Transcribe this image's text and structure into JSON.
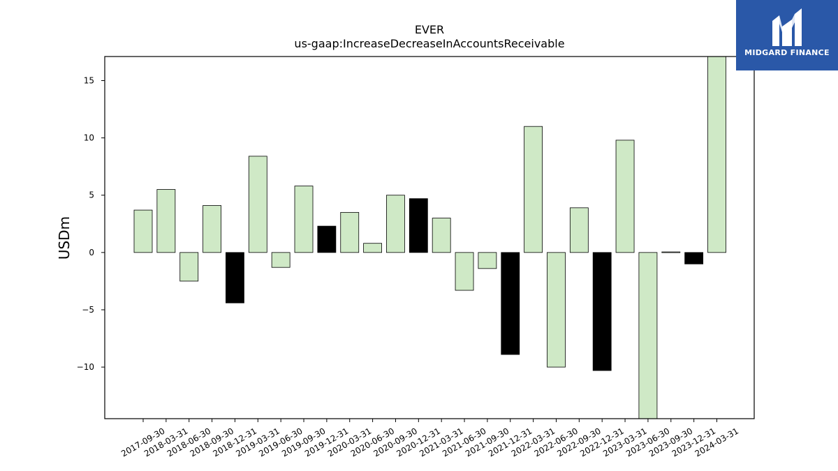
{
  "logo": {
    "text": "MIDGARD FINANCE",
    "icon": "midgard-logo-icon",
    "bg_color": "#2a58a8"
  },
  "chart_data": {
    "type": "bar",
    "title": "EVER",
    "subtitle": "us-gaap:IncreaseDecreaseInAccountsReceivable",
    "ylabel": "USDm",
    "xlabel": "",
    "ylim": [
      -14.5,
      17.1
    ],
    "yticks": [
      -10,
      -5,
      0,
      5,
      10,
      15
    ],
    "grid": false,
    "colors": {
      "default": "#cfe9c6",
      "highlight": "#000000",
      "edge": "#000000"
    },
    "categories": [
      "2017-09-30",
      "2018-03-31",
      "2018-06-30",
      "2018-09-30",
      "2018-12-31",
      "2019-03-31",
      "2019-06-30",
      "2019-09-30",
      "2019-12-31",
      "2020-03-31",
      "2020-06-30",
      "2020-09-30",
      "2020-12-31",
      "2021-03-31",
      "2021-06-30",
      "2021-09-30",
      "2021-12-31",
      "2022-03-31",
      "2022-06-30",
      "2022-09-30",
      "2022-12-31",
      "2023-03-31",
      "2023-06-30",
      "2023-09-30",
      "2023-12-31",
      "2024-03-31"
    ],
    "values": [
      3.7,
      5.5,
      -2.5,
      4.1,
      -4.4,
      8.4,
      -1.3,
      5.8,
      2.3,
      3.5,
      0.8,
      5.0,
      4.7,
      3.0,
      -3.3,
      -1.4,
      -8.9,
      11.0,
      -10.0,
      3.9,
      -10.3,
      9.8,
      -14.5,
      0.05,
      -1.0,
      17.1
    ],
    "highlight": [
      false,
      false,
      false,
      false,
      true,
      false,
      false,
      false,
      true,
      false,
      false,
      false,
      true,
      false,
      false,
      false,
      true,
      false,
      false,
      false,
      true,
      false,
      false,
      false,
      true,
      false
    ]
  }
}
